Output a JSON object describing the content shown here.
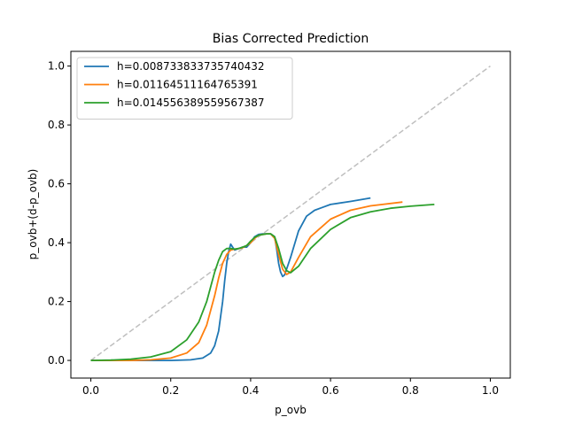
{
  "chart_data": {
    "type": "line",
    "title": "Bias Corrected Prediction",
    "xlabel": "p_ovb",
    "ylabel": "p_ovb+(d-p_ovb)",
    "xlim": [
      -0.05,
      1.05
    ],
    "ylim": [
      -0.06,
      1.05
    ],
    "xticks": [
      "0.0",
      "0.2",
      "0.4",
      "0.6",
      "0.8",
      "1.0"
    ],
    "yticks": [
      "0.0",
      "0.2",
      "0.4",
      "0.6",
      "0.8",
      "1.0"
    ],
    "grid": false,
    "legend_position": "upper-left",
    "reference_line": {
      "x": [
        0,
        1
      ],
      "y": [
        0,
        1
      ],
      "style": "dashed",
      "color": "#bfbfbf"
    },
    "series": [
      {
        "name": "h=0.008733833735740432",
        "color": "#1f77b4",
        "x": [
          0.0,
          0.1,
          0.2,
          0.25,
          0.28,
          0.3,
          0.31,
          0.32,
          0.33,
          0.335,
          0.34,
          0.345,
          0.35,
          0.355,
          0.36,
          0.37,
          0.38,
          0.39,
          0.4,
          0.41,
          0.42,
          0.43,
          0.44,
          0.45,
          0.46,
          0.465,
          0.47,
          0.475,
          0.48,
          0.485,
          0.49,
          0.5,
          0.52,
          0.54,
          0.56,
          0.58,
          0.6,
          0.65,
          0.7
        ],
        "y": [
          0.0,
          0.0,
          0.0,
          0.002,
          0.008,
          0.025,
          0.05,
          0.1,
          0.2,
          0.27,
          0.33,
          0.37,
          0.395,
          0.385,
          0.375,
          0.38,
          0.385,
          0.385,
          0.4,
          0.42,
          0.428,
          0.43,
          0.43,
          0.43,
          0.42,
          0.38,
          0.33,
          0.3,
          0.285,
          0.29,
          0.31,
          0.35,
          0.44,
          0.49,
          0.51,
          0.52,
          0.53,
          0.54,
          0.552
        ]
      },
      {
        "name": "h=0.01164511164765391",
        "color": "#ff7f0e",
        "x": [
          0.0,
          0.1,
          0.15,
          0.2,
          0.24,
          0.27,
          0.29,
          0.31,
          0.32,
          0.33,
          0.34,
          0.35,
          0.36,
          0.37,
          0.38,
          0.39,
          0.4,
          0.41,
          0.42,
          0.43,
          0.44,
          0.45,
          0.46,
          0.47,
          0.48,
          0.49,
          0.5,
          0.52,
          0.55,
          0.6,
          0.65,
          0.7,
          0.78
        ],
        "y": [
          0.0,
          0.0,
          0.002,
          0.008,
          0.025,
          0.06,
          0.12,
          0.22,
          0.28,
          0.33,
          0.36,
          0.375,
          0.378,
          0.38,
          0.383,
          0.39,
          0.4,
          0.415,
          0.425,
          0.428,
          0.43,
          0.43,
          0.415,
          0.36,
          0.31,
          0.292,
          0.3,
          0.35,
          0.42,
          0.48,
          0.51,
          0.525,
          0.538
        ]
      },
      {
        "name": "h=0.014556389559567387",
        "color": "#2ca02c",
        "x": [
          0.0,
          0.05,
          0.1,
          0.15,
          0.2,
          0.24,
          0.27,
          0.29,
          0.3,
          0.31,
          0.32,
          0.33,
          0.34,
          0.35,
          0.36,
          0.37,
          0.38,
          0.39,
          0.4,
          0.41,
          0.42,
          0.43,
          0.44,
          0.45,
          0.46,
          0.47,
          0.48,
          0.49,
          0.5,
          0.52,
          0.55,
          0.6,
          0.65,
          0.7,
          0.75,
          0.8,
          0.86
        ],
        "y": [
          0.0,
          0.001,
          0.004,
          0.012,
          0.03,
          0.07,
          0.13,
          0.2,
          0.25,
          0.3,
          0.34,
          0.37,
          0.38,
          0.38,
          0.378,
          0.38,
          0.385,
          0.39,
          0.405,
          0.418,
          0.425,
          0.428,
          0.43,
          0.43,
          0.42,
          0.38,
          0.33,
          0.305,
          0.298,
          0.32,
          0.38,
          0.445,
          0.485,
          0.505,
          0.517,
          0.524,
          0.53
        ]
      }
    ]
  }
}
